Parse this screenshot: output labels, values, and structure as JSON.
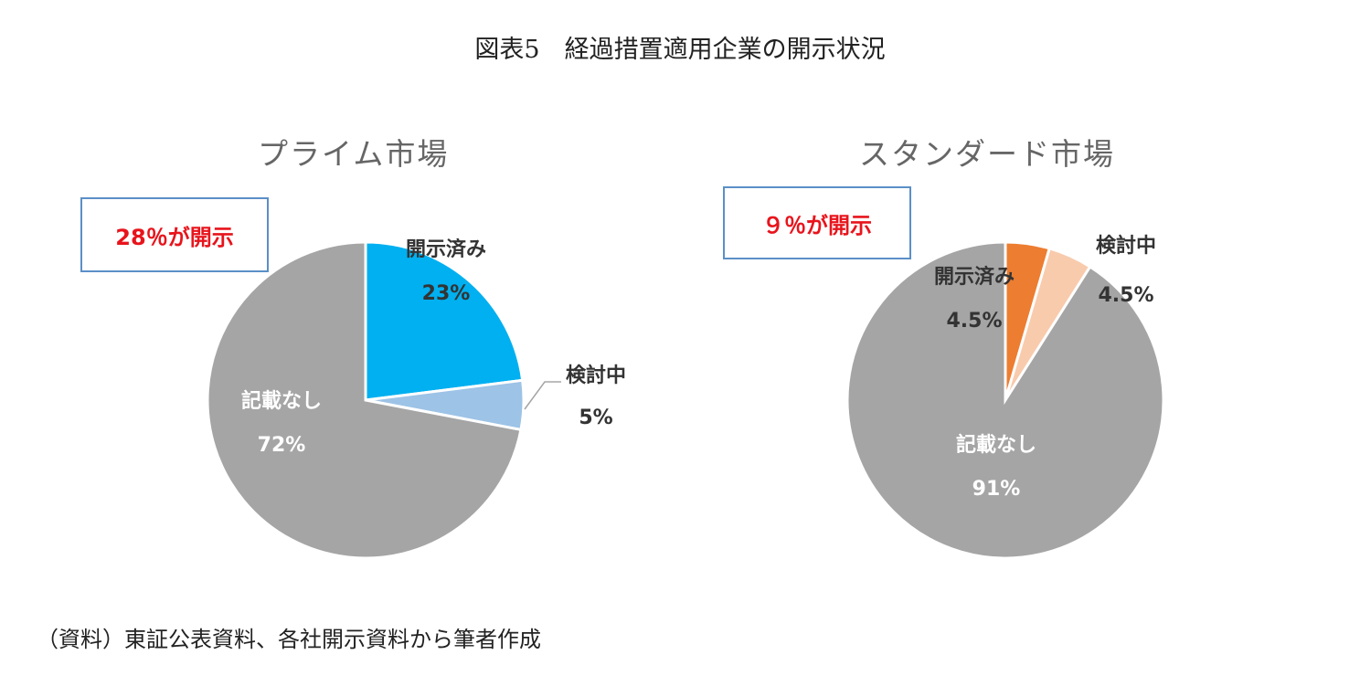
{
  "figure_title": "図表5　経過措置適用企業の開示状況",
  "source_note": "（資料）東証公表資料、各社開示資料から筆者作成",
  "chart_data": [
    {
      "type": "pie",
      "title": "プライム市場",
      "callout": "28％が開示",
      "slices": [
        {
          "label": "開示済み",
          "value": 23,
          "value_label": "23%",
          "color": "#00b0f0"
        },
        {
          "label": "検討中",
          "value": 5,
          "value_label": "5%",
          "color": "#9dc3e6"
        },
        {
          "label": "記載なし",
          "value": 72,
          "value_label": "72%",
          "color": "#a5a5a5"
        }
      ]
    },
    {
      "type": "pie",
      "title": "スタンダード市場",
      "callout": "９％が開示",
      "slices": [
        {
          "label": "開示済み",
          "value": 4.5,
          "value_label": "4.5%",
          "color": "#ed7d31"
        },
        {
          "label": "検討中",
          "value": 4.5,
          "value_label": "4.5%",
          "color": "#f8cbad"
        },
        {
          "label": "記載なし",
          "value": 91,
          "value_label": "91%",
          "color": "#a5a5a5"
        }
      ]
    }
  ]
}
